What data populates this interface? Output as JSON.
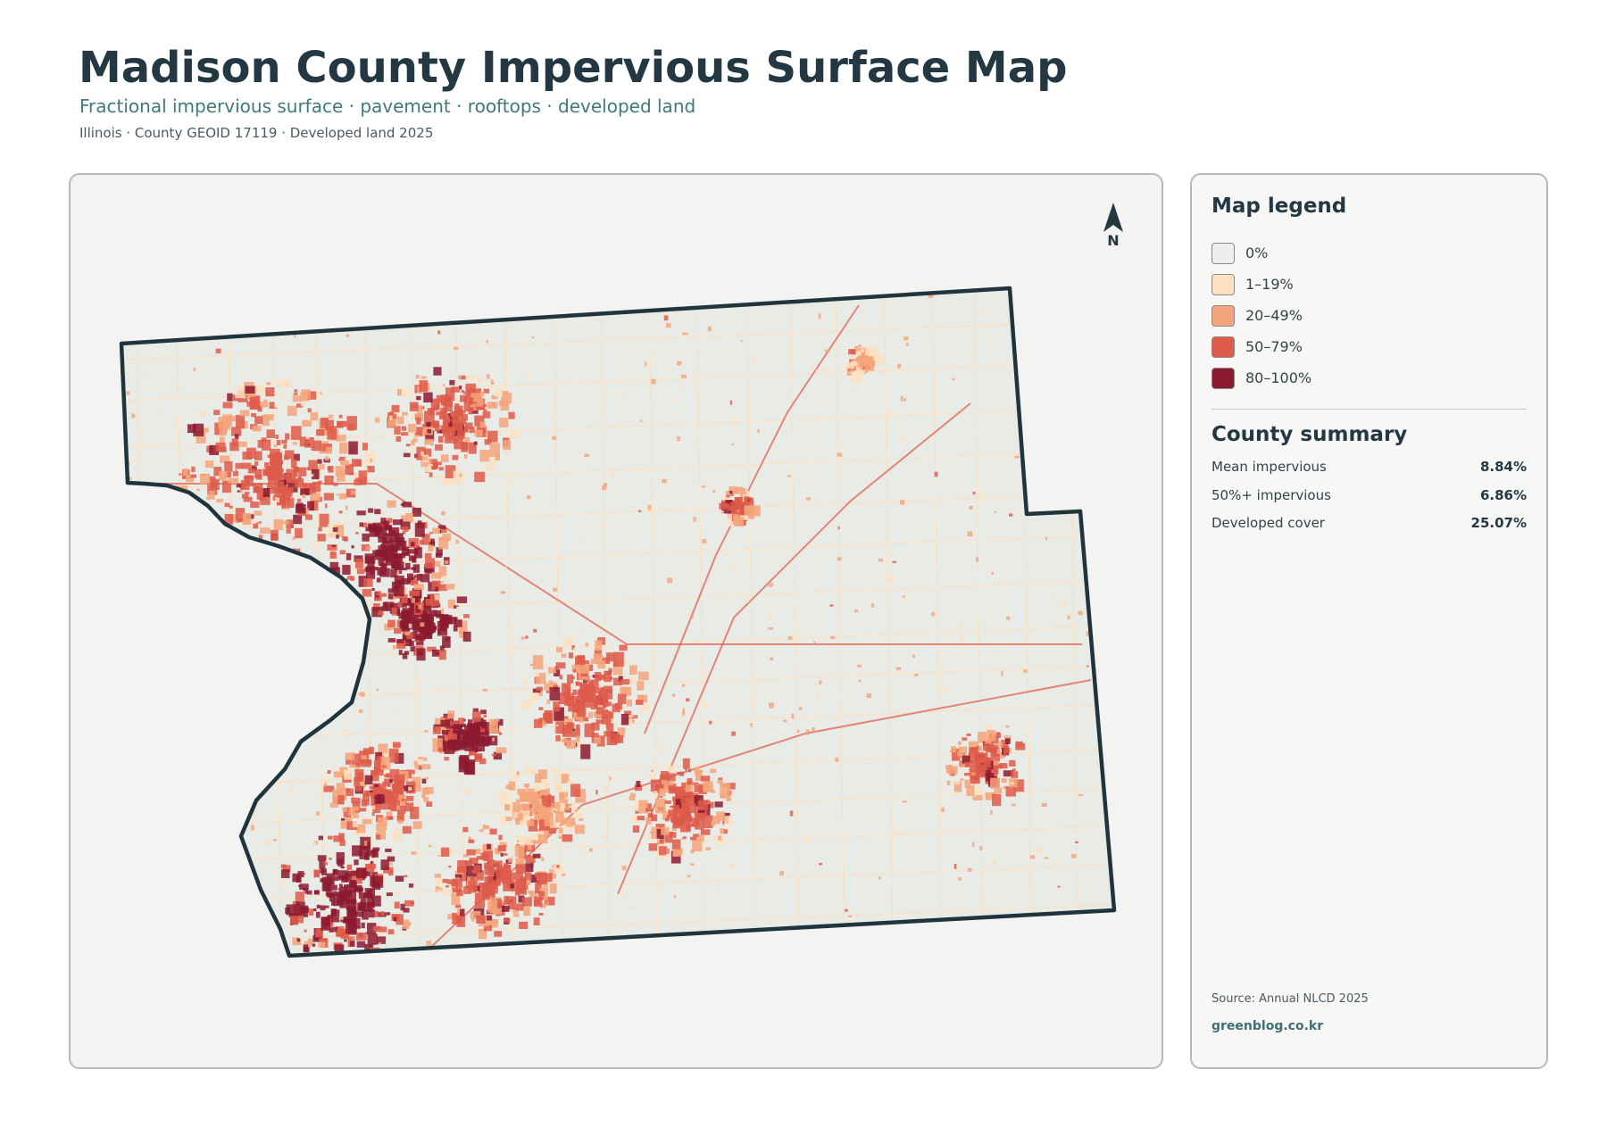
{
  "header": {
    "title": "Madison County Impervious Surface Map",
    "subtitle": "Fractional impervious surface · pavement · rooftops · developed land",
    "meta": "Illinois · County GEOID 17119 · Developed land 2025"
  },
  "map": {
    "north_label": "N",
    "base_color": "#e9ebe6",
    "outline_color": "#1f343d"
  },
  "legend": {
    "title": "Map legend",
    "items": [
      {
        "label": "0%",
        "color": "#eeeeec"
      },
      {
        "label": "1–19%",
        "color": "#fde0c0"
      },
      {
        "label": "20–49%",
        "color": "#f4a47a"
      },
      {
        "label": "50–79%",
        "color": "#de5a4a"
      },
      {
        "label": "80–100%",
        "color": "#8c1a2f"
      }
    ]
  },
  "summary": {
    "title": "County summary",
    "rows": [
      {
        "label": "Mean impervious",
        "value": "8.84%"
      },
      {
        "label": "50%+ impervious",
        "value": "6.86%"
      },
      {
        "label": "Developed cover",
        "value": "25.07%"
      }
    ]
  },
  "footer": {
    "source": "Source: Annual NLCD 2025",
    "site": "greenblog.co.kr"
  }
}
